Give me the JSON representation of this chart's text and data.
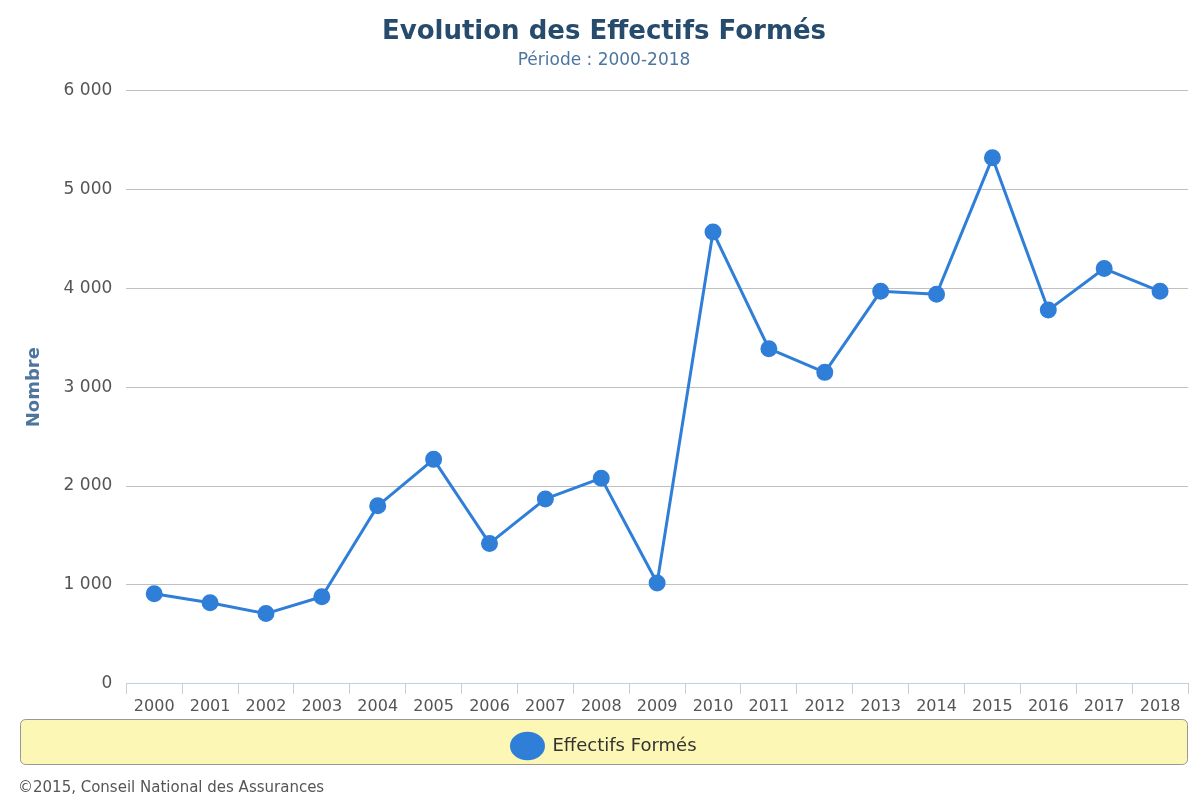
{
  "chart_data": {
    "type": "line",
    "title": "Evolution des Effectifs Formés",
    "subtitle": "Période : 2000-2018",
    "ylabel": "Nombre",
    "categories": [
      "2000",
      "2001",
      "2002",
      "2003",
      "2004",
      "2005",
      "2006",
      "2007",
      "2008",
      "2009",
      "2010",
      "2011",
      "2012",
      "2013",
      "2014",
      "2015",
      "2016",
      "2017",
      "2018"
    ],
    "series": [
      {
        "name": "Effectifs Formés",
        "color": "#2f7ed8",
        "values": [
          910,
          820,
          710,
          880,
          1800,
          2270,
          1420,
          1870,
          2080,
          1020,
          4570,
          3390,
          3150,
          3970,
          3940,
          5320,
          3780,
          4200,
          3970
        ]
      }
    ],
    "ylim": [
      0,
      6000
    ],
    "yticks": [
      {
        "value": 0,
        "label": "0"
      },
      {
        "value": 1000,
        "label": "1 000"
      },
      {
        "value": 2000,
        "label": "2 000"
      },
      {
        "value": 3000,
        "label": "3 000"
      },
      {
        "value": 4000,
        "label": "4 000"
      },
      {
        "value": 5000,
        "label": "5 000"
      },
      {
        "value": 6000,
        "label": "6 000"
      }
    ],
    "grid": "y",
    "legend": "bottom",
    "marker": "circle",
    "line_style": "solid",
    "annotations": [
      "©2015, Conseil National des Assurances"
    ]
  }
}
